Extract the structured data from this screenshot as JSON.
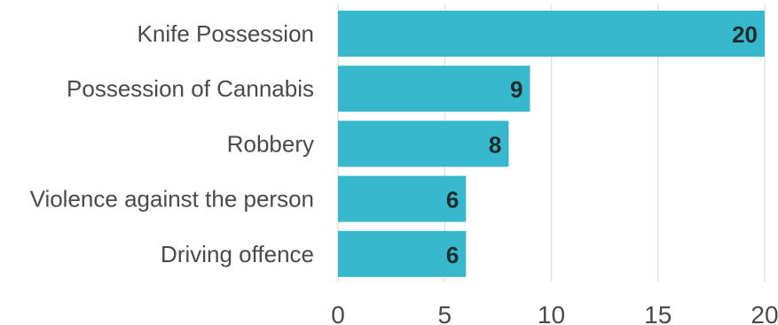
{
  "chart_data": {
    "type": "bar",
    "orientation": "horizontal",
    "categories": [
      "Knife Possession",
      "Possession of Cannabis",
      "Robbery",
      "Violence against the person",
      "Driving offence"
    ],
    "values": [
      20,
      9,
      8,
      6,
      6
    ],
    "xlim": [
      0,
      20
    ],
    "xticks": [
      0,
      5,
      10,
      15,
      20
    ],
    "title": "",
    "xlabel": "",
    "ylabel": "",
    "grid": "vertical",
    "data_labels": true,
    "colors": {
      "bar": "#37b8cc",
      "grid": "#e0e0e0",
      "text": "#4a4a4a",
      "value_text": "#1f2d2f"
    }
  }
}
